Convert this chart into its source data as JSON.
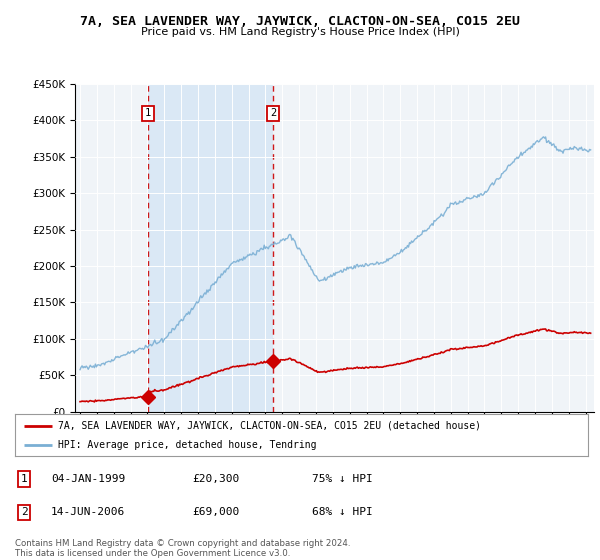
{
  "title": "7A, SEA LAVENDER WAY, JAYWICK, CLACTON-ON-SEA, CO15 2EU",
  "subtitle": "Price paid vs. HM Land Registry's House Price Index (HPI)",
  "sale1_date": "04-JAN-1999",
  "sale1_price": 20300,
  "sale1_hpi_pct": "75% ↓ HPI",
  "sale2_date": "14-JUN-2006",
  "sale2_price": 69000,
  "sale2_hpi_pct": "68% ↓ HPI",
  "legend_line1": "7A, SEA LAVENDER WAY, JAYWICK, CLACTON-ON-SEA, CO15 2EU (detached house)",
  "legend_line2": "HPI: Average price, detached house, Tendring",
  "footer": "Contains HM Land Registry data © Crown copyright and database right 2024.\nThis data is licensed under the Open Government Licence v3.0.",
  "sale_color": "#cc0000",
  "hpi_color": "#7aafd4",
  "vline_color": "#cc0000",
  "fill_color": "#dae8f5",
  "background_color": "#f0f4f8",
  "ylim": [
    0,
    450000
  ],
  "xlim_start": 1994.7,
  "xlim_end": 2025.5,
  "sale1_x": 1999.02,
  "sale2_x": 2006.46
}
